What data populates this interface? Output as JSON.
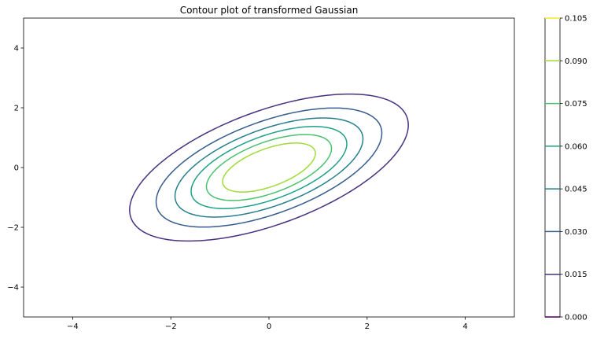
{
  "chart_data": {
    "type": "contour",
    "title": "Contour plot of transformed Gaussian",
    "xlabel": "",
    "ylabel": "",
    "xlim": [
      -5,
      5
    ],
    "ylim": [
      -5,
      5
    ],
    "xticks": [
      -4,
      -2,
      0,
      2,
      4
    ],
    "yticks": [
      -4,
      -2,
      0,
      2,
      4
    ],
    "xtick_labels": [
      "−4",
      "−2",
      "0",
      "2",
      "4"
    ],
    "ytick_labels": [
      "−4",
      "−2",
      "0",
      "2",
      "4"
    ],
    "grid": false,
    "distribution": {
      "mean": [
        0,
        0
      ],
      "covariance": [
        [
          2.0,
          1.0
        ],
        [
          1.0,
          1.5
        ]
      ]
    },
    "levels": [
      0.015,
      0.03,
      0.045,
      0.06,
      0.075,
      0.09
    ],
    "colorbar": {
      "range": [
        0.0,
        0.105
      ],
      "ticks": [
        0.0,
        0.015,
        0.03,
        0.045,
        0.06,
        0.075,
        0.09,
        0.105
      ],
      "tick_labels": [
        "0.000",
        "0.015",
        "0.030",
        "0.045",
        "0.060",
        "0.075",
        "0.090",
        "0.105"
      ],
      "tick_colors": [
        "#440154",
        "#46327e",
        "#365c8d",
        "#277f8e",
        "#1fa187",
        "#4ac16d",
        "#a0da39",
        "#fde725"
      ]
    },
    "colormap": "viridis"
  }
}
